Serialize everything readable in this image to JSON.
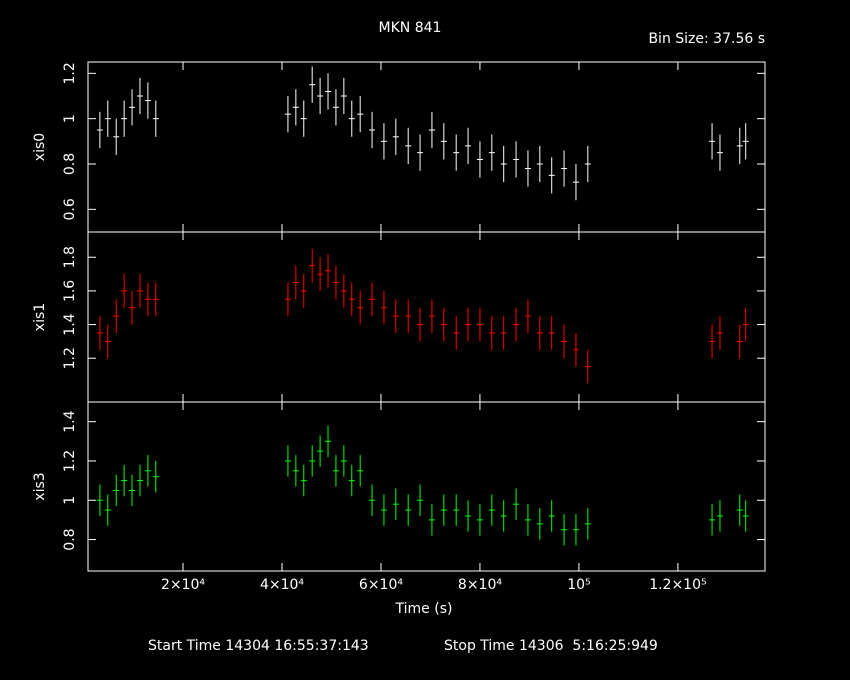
{
  "chart_data": [
    {
      "type": "scatter",
      "title": "MKN 841",
      "subtitle": "Bin Size: 37.56 s",
      "ylabel": "xis0",
      "color": "#ffffff",
      "xlim": [
        800,
        137600
      ],
      "xticks": [
        {
          "value": 20000,
          "label": "2×10⁴"
        },
        {
          "value": 40000,
          "label": "4×10⁴"
        },
        {
          "value": 60000,
          "label": "6×10⁴"
        },
        {
          "value": 80000,
          "label": "8×10⁴"
        },
        {
          "value": 100000,
          "label": "10⁵"
        },
        {
          "value": 120000,
          "label": "1.2×10⁵"
        }
      ],
      "ylim": [
        0.5,
        1.25
      ],
      "yticks": [
        0.6,
        0.8,
        1,
        1.2
      ],
      "x": [
        3200,
        4800,
        6500,
        8100,
        9700,
        11300,
        12900,
        14500,
        41200,
        42800,
        44400,
        46100,
        47700,
        49300,
        50900,
        52500,
        54100,
        55800,
        58200,
        60600,
        63000,
        65500,
        67900,
        70300,
        72700,
        75200,
        77600,
        80000,
        82400,
        84800,
        87300,
        89700,
        92100,
        94500,
        97000,
        99400,
        101800,
        126900,
        128500,
        132500,
        133700
      ],
      "values": [
        0.95,
        1.0,
        0.92,
        1.0,
        1.05,
        1.1,
        1.08,
        1.0,
        1.02,
        1.05,
        1.0,
        1.15,
        1.1,
        1.12,
        1.05,
        1.1,
        1.0,
        1.02,
        0.95,
        0.9,
        0.92,
        0.88,
        0.85,
        0.95,
        0.9,
        0.85,
        0.88,
        0.82,
        0.85,
        0.8,
        0.82,
        0.78,
        0.8,
        0.75,
        0.78,
        0.72,
        0.8,
        0.9,
        0.85,
        0.88,
        0.9
      ],
      "errors": [
        0.08,
        0.08,
        0.08,
        0.08,
        0.08,
        0.08,
        0.08,
        0.08,
        0.08,
        0.08,
        0.08,
        0.08,
        0.08,
        0.08,
        0.08,
        0.08,
        0.08,
        0.08,
        0.08,
        0.08,
        0.08,
        0.08,
        0.08,
        0.08,
        0.08,
        0.08,
        0.08,
        0.08,
        0.08,
        0.08,
        0.08,
        0.08,
        0.08,
        0.08,
        0.08,
        0.08,
        0.08,
        0.08,
        0.08,
        0.08,
        0.08
      ]
    },
    {
      "type": "scatter",
      "ylabel": "xis1",
      "color": "#ff0000",
      "xlim": [
        800,
        137600
      ],
      "xticks": [
        {
          "value": 20000,
          "label": "2×10⁴"
        },
        {
          "value": 40000,
          "label": "4×10⁴"
        },
        {
          "value": 60000,
          "label": "6×10⁴"
        },
        {
          "value": 80000,
          "label": "8×10⁴"
        },
        {
          "value": 100000,
          "label": "10⁵"
        },
        {
          "value": 120000,
          "label": "1.2×10⁵"
        }
      ],
      "ylim": [
        0.94,
        1.95
      ],
      "yticks": [
        1.2,
        1.4,
        1.6,
        1.8
      ],
      "x": [
        3200,
        4800,
        6500,
        8100,
        9700,
        11300,
        12900,
        14500,
        41200,
        42800,
        44400,
        46100,
        47700,
        49300,
        50900,
        52500,
        54100,
        55800,
        58200,
        60600,
        63000,
        65500,
        67900,
        70300,
        72700,
        75200,
        77600,
        80000,
        82400,
        84800,
        87300,
        89700,
        92100,
        94500,
        97000,
        99400,
        101800,
        126900,
        128500,
        132500,
        133700
      ],
      "values": [
        1.35,
        1.3,
        1.45,
        1.6,
        1.5,
        1.6,
        1.55,
        1.55,
        1.55,
        1.65,
        1.6,
        1.75,
        1.7,
        1.72,
        1.65,
        1.6,
        1.55,
        1.5,
        1.55,
        1.5,
        1.45,
        1.45,
        1.4,
        1.45,
        1.4,
        1.35,
        1.4,
        1.4,
        1.35,
        1.35,
        1.4,
        1.45,
        1.35,
        1.35,
        1.3,
        1.25,
        1.15,
        1.3,
        1.35,
        1.3,
        1.4
      ],
      "errors": [
        0.1,
        0.1,
        0.1,
        0.1,
        0.1,
        0.1,
        0.1,
        0.1,
        0.1,
        0.1,
        0.1,
        0.1,
        0.1,
        0.1,
        0.1,
        0.1,
        0.1,
        0.1,
        0.1,
        0.1,
        0.1,
        0.1,
        0.1,
        0.1,
        0.1,
        0.1,
        0.1,
        0.1,
        0.1,
        0.1,
        0.1,
        0.1,
        0.1,
        0.1,
        0.1,
        0.1,
        0.1,
        0.1,
        0.1,
        0.1,
        0.1
      ]
    },
    {
      "type": "scatter",
      "ylabel": "xis3",
      "xlabel": "Time (s)",
      "color": "#00ff00",
      "xlim": [
        800,
        137600
      ],
      "xticks": [
        {
          "value": 20000,
          "label": "2×10⁴"
        },
        {
          "value": 40000,
          "label": "4×10⁴"
        },
        {
          "value": 60000,
          "label": "6×10⁴"
        },
        {
          "value": 80000,
          "label": "8×10⁴"
        },
        {
          "value": 100000,
          "label": "10⁵"
        },
        {
          "value": 120000,
          "label": "1.2×10⁵"
        }
      ],
      "ylim": [
        0.64,
        1.5
      ],
      "yticks": [
        0.8,
        1,
        1.2,
        1.4
      ],
      "x": [
        3200,
        4800,
        6500,
        8100,
        9700,
        11300,
        12900,
        14500,
        41200,
        42800,
        44400,
        46100,
        47700,
        49300,
        50900,
        52500,
        54100,
        55800,
        58200,
        60600,
        63000,
        65500,
        67900,
        70300,
        72700,
        75200,
        77600,
        80000,
        82400,
        84800,
        87300,
        89700,
        92100,
        94500,
        97000,
        99400,
        101800,
        126900,
        128500,
        132500,
        133700
      ],
      "values": [
        1.0,
        0.95,
        1.05,
        1.1,
        1.05,
        1.1,
        1.15,
        1.12,
        1.2,
        1.15,
        1.1,
        1.2,
        1.25,
        1.3,
        1.15,
        1.2,
        1.1,
        1.15,
        1.0,
        0.95,
        0.98,
        0.95,
        1.0,
        0.9,
        0.95,
        0.95,
        0.92,
        0.9,
        0.95,
        0.92,
        0.98,
        0.9,
        0.88,
        0.92,
        0.85,
        0.85,
        0.88,
        0.9,
        0.92,
        0.95,
        0.92
      ],
      "errors": [
        0.08,
        0.08,
        0.08,
        0.08,
        0.08,
        0.08,
        0.08,
        0.08,
        0.08,
        0.08,
        0.08,
        0.08,
        0.08,
        0.08,
        0.08,
        0.08,
        0.08,
        0.08,
        0.08,
        0.08,
        0.08,
        0.08,
        0.08,
        0.08,
        0.08,
        0.08,
        0.08,
        0.08,
        0.08,
        0.08,
        0.08,
        0.08,
        0.08,
        0.08,
        0.08,
        0.08,
        0.08,
        0.08,
        0.08,
        0.08,
        0.08
      ]
    }
  ],
  "footer": {
    "start": "Start Time 14304 16:55:37:143",
    "stop": "Stop Time 14306  5:16:25:949"
  }
}
